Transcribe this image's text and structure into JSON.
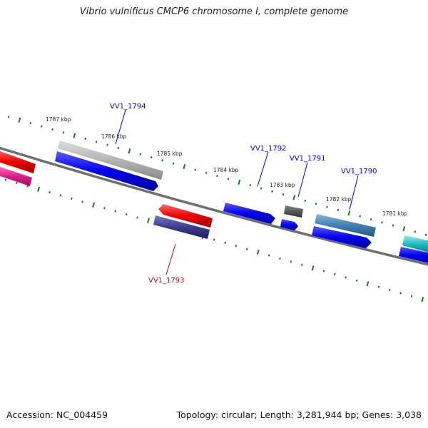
{
  "title": "Vibrio vulnificus CMCP6 chromosome I, complete genome",
  "footer": {
    "accession": "Accession: NC_004459",
    "summary": "Topology: circular; Length: 3,281,944 bp; Genes: 3,038"
  },
  "scale_labels": [
    "1787 kbp",
    "1786 kbp",
    "1785 kbp",
    "1784 kbp",
    "1783 kbp",
    "1782 kbp",
    "1781 kbp"
  ],
  "gene_labels": {
    "VV1_1794": "VV1_1794",
    "VV1_1793": "VV1_1793",
    "VV1_1792": "VV1_1792",
    "VV1_1791": "VV1_1791",
    "VV1_1790": "VV1_1790"
  },
  "colors": {
    "backbone": "#7a7a7a",
    "tick": "#1a7a1a",
    "forward_label": "#0000cc",
    "reverse_label": "#cc0000",
    "cds_blue": "#0000ee",
    "rna_gray": "#aaaaaa",
    "cds_red": "#ee0000",
    "cds_navy": "#3c3a8c",
    "cds_dark": "#555555",
    "cds_steel": "#3f7fb0",
    "cds_cyan": "#1fb8c0",
    "cds_magenta": "#e0208c"
  }
}
